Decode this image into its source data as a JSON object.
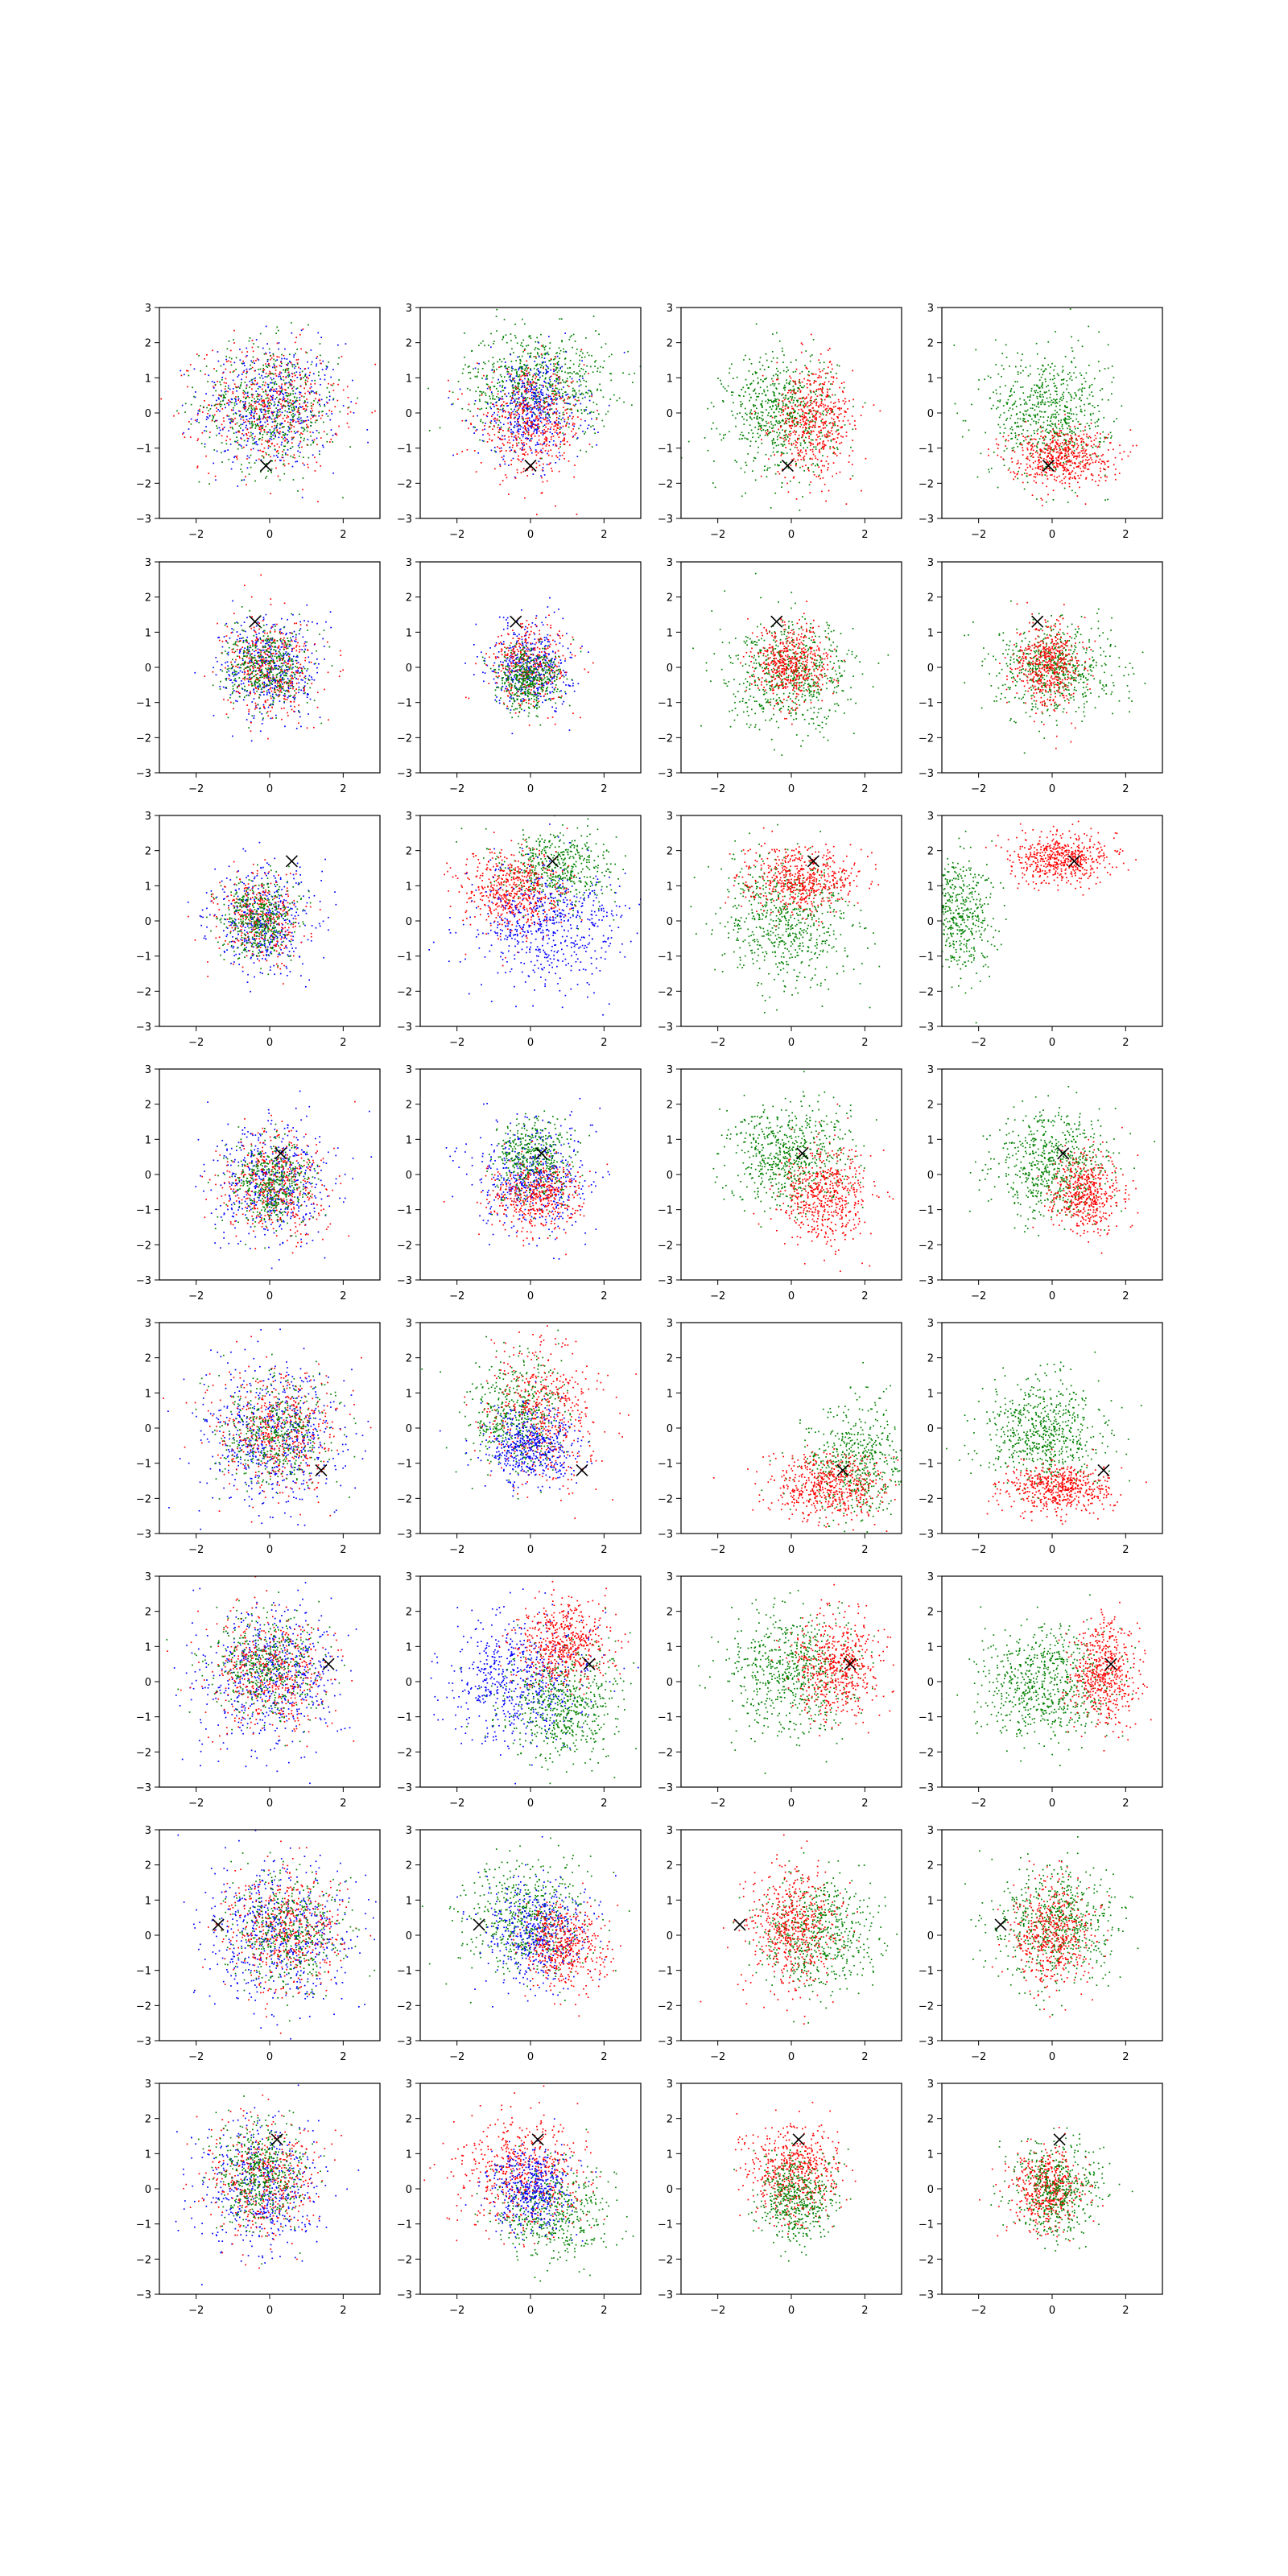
{
  "chart_data": {
    "type": "scatter",
    "title": "",
    "layout": {
      "rows": 8,
      "cols": 4
    },
    "xlim": [
      -3,
      3
    ],
    "ylim": [
      -3,
      3
    ],
    "xticks": [
      -2,
      0,
      2
    ],
    "yticks": [
      -3,
      -2,
      -1,
      0,
      1,
      2,
      3
    ],
    "grid": false,
    "legend": "none",
    "marker": {
      "symbol": "x",
      "color": "#000000"
    },
    "colors": {
      "red": "#ff0000",
      "green": "#008000",
      "blue": "#0000ff"
    },
    "panels": [
      {
        "row": 0,
        "col": 0,
        "marker": [
          -0.1,
          -1.5
        ],
        "clouds": [
          {
            "color": "blue",
            "n": 500,
            "cx": 0,
            "cy": 0.2,
            "sx": 0.95,
            "sy": 0.9
          },
          {
            "color": "red",
            "n": 500,
            "cx": 0,
            "cy": 0.2,
            "sx": 0.95,
            "sy": 0.9
          },
          {
            "color": "green",
            "n": 500,
            "cx": 0,
            "cy": 0.2,
            "sx": 0.95,
            "sy": 0.9
          }
        ]
      },
      {
        "row": 0,
        "col": 1,
        "marker": [
          0,
          -1.5
        ],
        "clouds": [
          {
            "color": "green",
            "n": 700,
            "cx": 0.2,
            "cy": 0.9,
            "sx": 1.0,
            "sy": 0.75
          },
          {
            "color": "blue",
            "n": 500,
            "cx": 0,
            "cy": 0.1,
            "sx": 0.7,
            "sy": 0.75
          },
          {
            "color": "red",
            "n": 500,
            "cx": 0,
            "cy": -0.3,
            "sx": 0.75,
            "sy": 0.75
          }
        ]
      },
      {
        "row": 0,
        "col": 2,
        "marker": [
          -0.1,
          -1.5
        ],
        "clouds": [
          {
            "color": "green",
            "n": 650,
            "cx": -0.3,
            "cy": 0,
            "sx": 0.75,
            "sy": 0.85
          },
          {
            "color": "red",
            "n": 550,
            "cx": 0.6,
            "cy": -0.2,
            "sx": 0.55,
            "sy": 0.8
          }
        ]
      },
      {
        "row": 0,
        "col": 3,
        "marker": [
          -0.1,
          -1.5
        ],
        "clouds": [
          {
            "color": "green",
            "n": 650,
            "cx": -0.1,
            "cy": 0,
            "sx": 0.8,
            "sy": 0.9
          },
          {
            "color": "red",
            "n": 550,
            "cx": 0.2,
            "cy": -1.2,
            "sx": 0.7,
            "sy": 0.4
          }
        ]
      },
      {
        "row": 1,
        "col": 0,
        "marker": [
          -0.4,
          1.3
        ],
        "clouds": [
          {
            "color": "blue",
            "n": 450,
            "cx": 0,
            "cy": 0,
            "sx": 0.7,
            "sy": 0.75
          },
          {
            "color": "red",
            "n": 400,
            "cx": 0,
            "cy": 0,
            "sx": 0.6,
            "sy": 0.7
          },
          {
            "color": "green",
            "n": 450,
            "cx": -0.1,
            "cy": 0,
            "sx": 0.55,
            "sy": 0.55
          }
        ]
      },
      {
        "row": 1,
        "col": 1,
        "marker": [
          -0.4,
          1.3
        ],
        "clouds": [
          {
            "color": "blue",
            "n": 450,
            "cx": 0,
            "cy": 0.1,
            "sx": 0.55,
            "sy": 0.6
          },
          {
            "color": "red",
            "n": 350,
            "cx": 0,
            "cy": 0.1,
            "sx": 0.55,
            "sy": 0.6
          },
          {
            "color": "green",
            "n": 450,
            "cx": -0.1,
            "cy": -0.3,
            "sx": 0.45,
            "sy": 0.45
          }
        ]
      },
      {
        "row": 1,
        "col": 2,
        "marker": [
          -0.4,
          1.3
        ],
        "clouds": [
          {
            "color": "green",
            "n": 650,
            "cx": 0,
            "cy": -0.2,
            "sx": 0.85,
            "sy": 0.75
          },
          {
            "color": "red",
            "n": 500,
            "cx": 0,
            "cy": 0.1,
            "sx": 0.5,
            "sy": 0.55
          }
        ]
      },
      {
        "row": 1,
        "col": 3,
        "marker": [
          -0.4,
          1.3
        ],
        "clouds": [
          {
            "color": "green",
            "n": 600,
            "cx": 0.1,
            "cy": 0,
            "sx": 0.8,
            "sy": 0.65
          },
          {
            "color": "red",
            "n": 500,
            "cx": -0.1,
            "cy": 0.1,
            "sx": 0.45,
            "sy": 0.6
          }
        ]
      },
      {
        "row": 2,
        "col": 0,
        "marker": [
          0.6,
          1.7
        ],
        "clouds": [
          {
            "color": "blue",
            "n": 450,
            "cx": -0.2,
            "cy": 0,
            "sx": 0.7,
            "sy": 0.75
          },
          {
            "color": "red",
            "n": 350,
            "cx": -0.3,
            "cy": 0.1,
            "sx": 0.55,
            "sy": 0.6
          },
          {
            "color": "green",
            "n": 450,
            "cx": -0.3,
            "cy": 0.1,
            "sx": 0.5,
            "sy": 0.55
          }
        ]
      },
      {
        "row": 2,
        "col": 1,
        "marker": [
          0.6,
          1.7
        ],
        "clouds": [
          {
            "color": "green",
            "n": 500,
            "cx": 0.7,
            "cy": 1.5,
            "sx": 0.75,
            "sy": 0.55
          },
          {
            "color": "red",
            "n": 550,
            "cx": -0.5,
            "cy": 0.8,
            "sx": 0.7,
            "sy": 0.6
          },
          {
            "color": "blue",
            "n": 600,
            "cx": 0.5,
            "cy": -0.1,
            "sx": 1.1,
            "sy": 0.85
          }
        ]
      },
      {
        "row": 2,
        "col": 2,
        "marker": [
          0.6,
          1.7
        ],
        "clouds": [
          {
            "color": "green",
            "n": 650,
            "cx": -0.1,
            "cy": 0,
            "sx": 0.9,
            "sy": 0.9
          },
          {
            "color": "red",
            "n": 550,
            "cx": 0.2,
            "cy": 1.2,
            "sx": 0.75,
            "sy": 0.45
          }
        ]
      },
      {
        "row": 2,
        "col": 3,
        "marker": [
          0.6,
          1.7
        ],
        "clouds": [
          {
            "color": "green",
            "n": 500,
            "cx": -2.6,
            "cy": 0.2,
            "sx": 0.5,
            "sy": 0.85
          },
          {
            "color": "red",
            "n": 550,
            "cx": 0.3,
            "cy": 1.8,
            "sx": 0.7,
            "sy": 0.35
          }
        ]
      },
      {
        "row": 3,
        "col": 0,
        "marker": [
          0.3,
          0.6
        ],
        "clouds": [
          {
            "color": "blue",
            "n": 500,
            "cx": 0,
            "cy": -0.2,
            "sx": 0.8,
            "sy": 0.85
          },
          {
            "color": "red",
            "n": 450,
            "cx": 0.1,
            "cy": -0.3,
            "sx": 0.7,
            "sy": 0.75
          },
          {
            "color": "green",
            "n": 450,
            "cx": 0,
            "cy": -0.2,
            "sx": 0.55,
            "sy": 0.6
          }
        ]
      },
      {
        "row": 3,
        "col": 1,
        "marker": [
          0.3,
          0.6
        ],
        "clouds": [
          {
            "color": "blue",
            "n": 500,
            "cx": 0,
            "cy": -0.1,
            "sx": 0.75,
            "sy": 0.8
          },
          {
            "color": "green",
            "n": 450,
            "cx": 0.1,
            "cy": 0.4,
            "sx": 0.55,
            "sy": 0.6
          },
          {
            "color": "red",
            "n": 450,
            "cx": 0.1,
            "cy": -0.6,
            "sx": 0.6,
            "sy": 0.5
          }
        ]
      },
      {
        "row": 3,
        "col": 2,
        "marker": [
          0.3,
          0.6
        ],
        "clouds": [
          {
            "color": "green",
            "n": 650,
            "cx": -0.1,
            "cy": 0.5,
            "sx": 0.8,
            "sy": 0.75
          },
          {
            "color": "red",
            "n": 550,
            "cx": 0.9,
            "cy": -0.6,
            "sx": 0.6,
            "sy": 0.7
          }
        ]
      },
      {
        "row": 3,
        "col": 3,
        "marker": [
          0.3,
          0.6
        ],
        "clouds": [
          {
            "color": "green",
            "n": 650,
            "cx": 0,
            "cy": 0.3,
            "sx": 0.75,
            "sy": 0.75
          },
          {
            "color": "red",
            "n": 500,
            "cx": 0.9,
            "cy": -0.5,
            "sx": 0.5,
            "sy": 0.55
          }
        ]
      },
      {
        "row": 4,
        "col": 0,
        "marker": [
          1.4,
          -1.2
        ],
        "clouds": [
          {
            "color": "blue",
            "n": 600,
            "cx": 0.1,
            "cy": -0.2,
            "sx": 0.95,
            "sy": 1.0
          },
          {
            "color": "red",
            "n": 500,
            "cx": 0.2,
            "cy": -0.1,
            "sx": 0.8,
            "sy": 0.85
          },
          {
            "color": "green",
            "n": 450,
            "cx": 0.1,
            "cy": -0.1,
            "sx": 0.75,
            "sy": 0.75
          }
        ]
      },
      {
        "row": 4,
        "col": 1,
        "marker": [
          1.4,
          -1.2
        ],
        "clouds": [
          {
            "color": "green",
            "n": 500,
            "cx": -0.4,
            "cy": 0.4,
            "sx": 0.7,
            "sy": 0.8
          },
          {
            "color": "red",
            "n": 500,
            "cx": 0.4,
            "cy": 0.4,
            "sx": 0.75,
            "sy": 1.0
          },
          {
            "color": "blue",
            "n": 500,
            "cx": 0,
            "cy": -0.5,
            "sx": 0.6,
            "sy": 0.6
          }
        ]
      },
      {
        "row": 4,
        "col": 2,
        "marker": [
          1.4,
          -1.2
        ],
        "clouds": [
          {
            "color": "green",
            "n": 550,
            "cx": 1.8,
            "cy": -1.0,
            "sx": 0.7,
            "sy": 0.8
          },
          {
            "color": "red",
            "n": 550,
            "cx": 1.0,
            "cy": -1.7,
            "sx": 0.8,
            "sy": 0.45
          }
        ]
      },
      {
        "row": 4,
        "col": 3,
        "marker": [
          1.4,
          -1.2
        ],
        "clouds": [
          {
            "color": "green",
            "n": 650,
            "cx": -0.2,
            "cy": -0.1,
            "sx": 0.8,
            "sy": 0.75
          },
          {
            "color": "red",
            "n": 550,
            "cx": 0.2,
            "cy": -1.7,
            "sx": 0.75,
            "sy": 0.35
          }
        ]
      },
      {
        "row": 5,
        "col": 0,
        "marker": [
          1.6,
          0.5
        ],
        "clouds": [
          {
            "color": "blue",
            "n": 600,
            "cx": 0,
            "cy": 0.2,
            "sx": 0.95,
            "sy": 1.0
          },
          {
            "color": "red",
            "n": 500,
            "cx": 0,
            "cy": 0.3,
            "sx": 0.8,
            "sy": 0.85
          },
          {
            "color": "green",
            "n": 450,
            "cx": -0.1,
            "cy": 0.5,
            "sx": 0.75,
            "sy": 0.75
          }
        ]
      },
      {
        "row": 5,
        "col": 1,
        "marker": [
          1.6,
          0.5
        ],
        "clouds": [
          {
            "color": "blue",
            "n": 600,
            "cx": -0.3,
            "cy": 0.1,
            "sx": 1.0,
            "sy": 0.9
          },
          {
            "color": "green",
            "n": 600,
            "cx": 0.8,
            "cy": -0.7,
            "sx": 0.8,
            "sy": 0.8
          },
          {
            "color": "red",
            "n": 550,
            "cx": 0.9,
            "cy": 1.1,
            "sx": 0.6,
            "sy": 0.6
          }
        ]
      },
      {
        "row": 5,
        "col": 2,
        "marker": [
          1.6,
          0.5
        ],
        "clouds": [
          {
            "color": "green",
            "n": 650,
            "cx": 0,
            "cy": 0.3,
            "sx": 0.9,
            "sy": 0.85
          },
          {
            "color": "red",
            "n": 550,
            "cx": 1.2,
            "cy": 0.5,
            "sx": 0.55,
            "sy": 0.7
          }
        ]
      },
      {
        "row": 5,
        "col": 3,
        "marker": [
          1.6,
          0.5
        ],
        "clouds": [
          {
            "color": "green",
            "n": 700,
            "cx": -0.2,
            "cy": 0,
            "sx": 0.85,
            "sy": 0.8
          },
          {
            "color": "red",
            "n": 550,
            "cx": 1.4,
            "cy": 0.3,
            "sx": 0.45,
            "sy": 0.7
          }
        ]
      },
      {
        "row": 6,
        "col": 0,
        "marker": [
          -1.4,
          0.3
        ],
        "clouds": [
          {
            "color": "blue",
            "n": 600,
            "cx": 0.2,
            "cy": 0,
            "sx": 1.0,
            "sy": 1.0
          },
          {
            "color": "red",
            "n": 500,
            "cx": 0.4,
            "cy": 0.1,
            "sx": 0.85,
            "sy": 0.85
          },
          {
            "color": "green",
            "n": 450,
            "cx": 0.5,
            "cy": 0.1,
            "sx": 0.75,
            "sy": 0.75
          }
        ]
      },
      {
        "row": 6,
        "col": 1,
        "marker": [
          -1.4,
          0.3
        ],
        "clouds": [
          {
            "color": "green",
            "n": 550,
            "cx": -0.1,
            "cy": 0.4,
            "sx": 0.85,
            "sy": 0.8
          },
          {
            "color": "blue",
            "n": 500,
            "cx": 0.1,
            "cy": 0.1,
            "sx": 0.7,
            "sy": 0.75
          },
          {
            "color": "red",
            "n": 450,
            "cx": 0.9,
            "cy": -0.3,
            "sx": 0.6,
            "sy": 0.6
          }
        ]
      },
      {
        "row": 6,
        "col": 2,
        "marker": [
          -1.4,
          0.3
        ],
        "clouds": [
          {
            "color": "green",
            "n": 600,
            "cx": 0.7,
            "cy": 0,
            "sx": 0.8,
            "sy": 0.85
          },
          {
            "color": "red",
            "n": 550,
            "cx": 0,
            "cy": 0.2,
            "sx": 0.65,
            "sy": 0.85
          }
        ]
      },
      {
        "row": 6,
        "col": 3,
        "marker": [
          -1.4,
          0.3
        ],
        "clouds": [
          {
            "color": "green",
            "n": 650,
            "cx": 0.1,
            "cy": 0.3,
            "sx": 0.85,
            "sy": 0.85
          },
          {
            "color": "red",
            "n": 500,
            "cx": 0,
            "cy": 0,
            "sx": 0.55,
            "sy": 0.75
          }
        ]
      },
      {
        "row": 7,
        "col": 0,
        "marker": [
          0.2,
          1.4
        ],
        "clouds": [
          {
            "color": "blue",
            "n": 500,
            "cx": -0.3,
            "cy": 0.1,
            "sx": 0.8,
            "sy": 0.9
          },
          {
            "color": "red",
            "n": 450,
            "cx": -0.2,
            "cy": 0.2,
            "sx": 0.75,
            "sy": 0.85
          },
          {
            "color": "green",
            "n": 500,
            "cx": -0.3,
            "cy": 0.4,
            "sx": 0.6,
            "sy": 0.75
          }
        ]
      },
      {
        "row": 7,
        "col": 1,
        "marker": [
          0.2,
          1.4
        ],
        "clouds": [
          {
            "color": "green",
            "n": 500,
            "cx": 0.6,
            "cy": -0.6,
            "sx": 0.75,
            "sy": 0.7
          },
          {
            "color": "red",
            "n": 550,
            "cx": -0.2,
            "cy": 0.4,
            "sx": 0.85,
            "sy": 0.8
          },
          {
            "color": "blue",
            "n": 450,
            "cx": 0,
            "cy": 0,
            "sx": 0.55,
            "sy": 0.6
          }
        ]
      },
      {
        "row": 7,
        "col": 2,
        "marker": [
          0.2,
          1.4
        ],
        "clouds": [
          {
            "color": "red",
            "n": 550,
            "cx": 0,
            "cy": 0.5,
            "sx": 0.65,
            "sy": 0.65
          },
          {
            "color": "green",
            "n": 500,
            "cx": 0.1,
            "cy": -0.3,
            "sx": 0.5,
            "sy": 0.6
          }
        ]
      },
      {
        "row": 7,
        "col": 3,
        "marker": [
          0.2,
          1.4
        ],
        "clouds": [
          {
            "color": "red",
            "n": 500,
            "cx": -0.1,
            "cy": 0,
            "sx": 0.5,
            "sy": 0.55
          },
          {
            "color": "green",
            "n": 500,
            "cx": 0.1,
            "cy": 0,
            "sx": 0.6,
            "sy": 0.65
          }
        ]
      }
    ]
  }
}
